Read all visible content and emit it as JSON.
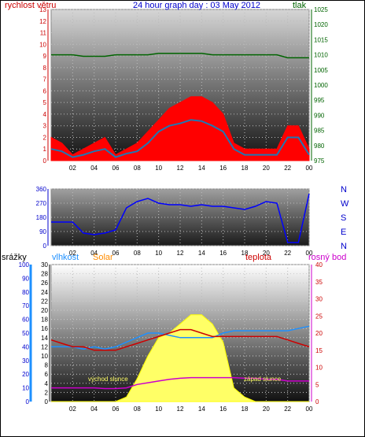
{
  "colors": {
    "wind": "#ff0000",
    "gust_line": "#1e78b4",
    "pressure": "#006400",
    "dir": "#0000ff",
    "humidity": "#1e90ff",
    "solar": "#ffff66",
    "temp": "#cc0000",
    "dew": "#cc00cc",
    "rain_axis": "#0000cc",
    "hum_axis": "#1e90ff",
    "solar_axis": "#ff8c00",
    "temp_axis": "#cc0000",
    "dew_axis": "#cc00cc"
  },
  "top": {
    "title": "24 hour graph day : 03 May 2012",
    "left_label": "rychlost větru",
    "right_label": "tlak",
    "left_ticks": [
      "0",
      "1",
      "2",
      "3",
      "4",
      "5",
      "6",
      "7",
      "8",
      "9",
      "10",
      "11",
      "12",
      "13"
    ],
    "right_ticks": [
      "975",
      "980",
      "985",
      "990",
      "995",
      "1000",
      "1005",
      "1010",
      "1015",
      "1020",
      "1025"
    ],
    "x_ticks": [
      "02",
      "04",
      "06",
      "08",
      "10",
      "12",
      "14",
      "16",
      "18",
      "20",
      "22",
      "00"
    ]
  },
  "middle": {
    "left_ticks": [
      "0",
      "90",
      "180",
      "270",
      "360"
    ],
    "right_ticks": [
      "N",
      "W",
      "S",
      "E",
      "N"
    ],
    "x_ticks": [
      "02",
      "04",
      "06",
      "08",
      "10",
      "12",
      "14",
      "16",
      "18",
      "20",
      "22",
      "00"
    ]
  },
  "bottom": {
    "label_rain": "srážky",
    "label_humidity": "vlhkost",
    "label_solar": "Solar",
    "label_temp": "teplota",
    "label_dew": "rosný bod",
    "rain_ticks": [
      "0",
      "10",
      "20",
      "30",
      "40",
      "50",
      "60",
      "70",
      "80",
      "90",
      "100"
    ],
    "humidity_ticks": [
      "0",
      "2",
      "4",
      "6",
      "8",
      "10",
      "12",
      "14",
      "16",
      "18",
      "20",
      "22",
      "24",
      "26",
      "28",
      "30"
    ],
    "temp_ticks": [
      "0",
      "5",
      "10",
      "15",
      "20",
      "25",
      "30",
      "35",
      "40"
    ],
    "x_ticks": [
      "02",
      "04",
      "06",
      "08",
      "10",
      "12",
      "14",
      "16",
      "18",
      "20",
      "22",
      "00"
    ],
    "sunrise_label": "východ slunce",
    "sunset_label": "západ slunce"
  },
  "chart_data": [
    {
      "type": "line",
      "title": "24 hour graph day : 03 May 2012",
      "ylabel": "rychlost větru",
      "y2label": "tlak",
      "ylim": [
        0,
        13
      ],
      "y2lim": [
        975,
        1025
      ],
      "x": [
        0,
        1,
        2,
        3,
        4,
        5,
        6,
        7,
        8,
        9,
        10,
        11,
        12,
        13,
        14,
        15,
        16,
        17,
        18,
        19,
        20,
        21,
        22,
        23,
        24
      ],
      "series": [
        {
          "values": [
            2,
            1.5,
            0.5,
            1,
            1.5,
            2,
            0.5,
            1,
            1.5,
            2.5,
            3.5,
            4.5,
            5,
            5.5,
            5.5,
            5,
            4,
            1.5,
            1,
            1,
            1,
            1,
            3,
            3,
            1
          ]
        },
        {
          "values": [
            1,
            0.8,
            0.3,
            0.5,
            0.8,
            1,
            0.3,
            0.6,
            0.8,
            1.5,
            2.5,
            3,
            3.2,
            3.5,
            3.4,
            3,
            2.5,
            1,
            0.5,
            0.5,
            0.5,
            0.5,
            2,
            2,
            0.5
          ]
        },
        {
          "values": [
            1010,
            1010,
            1010,
            1009.5,
            1009.5,
            1009.5,
            1010,
            1010,
            1010,
            1010,
            1010.5,
            1010.5,
            1010.5,
            1010.5,
            1010.5,
            1010,
            1010,
            1010,
            1010,
            1010,
            1010,
            1010,
            1009,
            1009,
            1009
          ]
        }
      ]
    },
    {
      "type": "line",
      "ylim": [
        0,
        360
      ],
      "x": [
        0,
        1,
        2,
        3,
        4,
        5,
        6,
        7,
        8,
        9,
        10,
        11,
        12,
        13,
        14,
        15,
        16,
        17,
        18,
        19,
        20,
        21,
        22,
        23,
        24
      ],
      "series": [
        {
          "values": [
            150,
            150,
            150,
            80,
            70,
            80,
            100,
            240,
            280,
            300,
            270,
            260,
            260,
            250,
            260,
            250,
            250,
            240,
            230,
            250,
            280,
            270,
            20,
            20,
            330
          ]
        }
      ]
    },
    {
      "type": "area",
      "ylim": [
        0,
        30
      ],
      "x": [
        0,
        1,
        2,
        3,
        4,
        5,
        6,
        7,
        8,
        9,
        10,
        11,
        12,
        13,
        14,
        15,
        16,
        17,
        18,
        19,
        20,
        21,
        22,
        23,
        24
      ],
      "series": [
        {
          "values": [
            12,
            12,
            12,
            11.5,
            12,
            11.5,
            12,
            13,
            14,
            15,
            15,
            14.5,
            14,
            14,
            14,
            14,
            15,
            15.5,
            15.5,
            15.5,
            15.5,
            15.5,
            15.5,
            16,
            16.5
          ]
        },
        {
          "values": [
            0,
            0,
            0,
            0,
            0,
            0,
            0,
            1,
            5,
            10,
            14,
            15,
            17,
            19,
            19,
            17,
            13,
            3,
            1,
            0,
            0,
            0,
            0,
            0,
            0
          ]
        },
        {
          "values": [
            18,
            17,
            16,
            16,
            15,
            15,
            15,
            16,
            17,
            18,
            19,
            20,
            21,
            21,
            20,
            19,
            19,
            19,
            19,
            19,
            19,
            19,
            18,
            17,
            16
          ]
        },
        {
          "values": [
            4,
            4,
            4,
            4,
            4,
            3.8,
            3.8,
            4,
            5,
            5.5,
            6,
            6.5,
            6.8,
            7,
            7,
            7,
            7,
            7,
            6.8,
            6.8,
            6.5,
            6.5,
            6,
            6,
            6
          ]
        }
      ]
    }
  ]
}
